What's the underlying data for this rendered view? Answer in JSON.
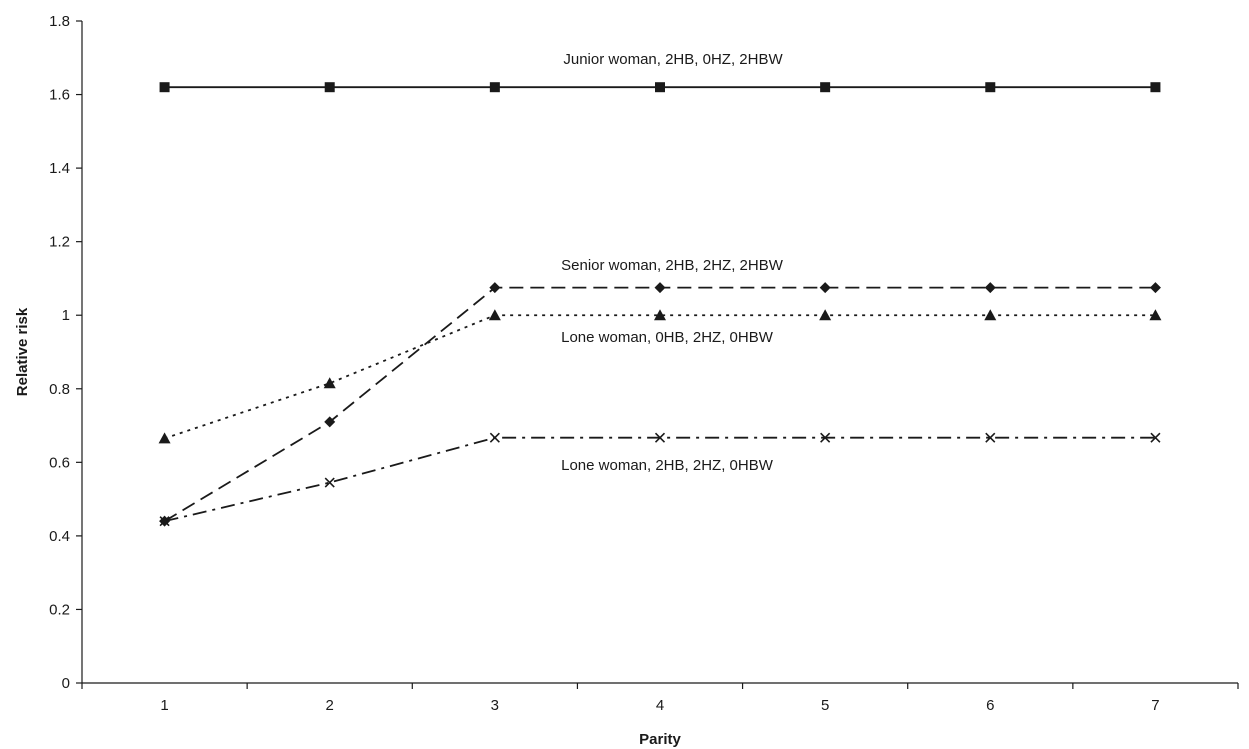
{
  "chart_data": {
    "type": "line",
    "title": "",
    "xlabel": "Parity",
    "ylabel": "Relative risk",
    "x": [
      1,
      2,
      3,
      4,
      5,
      6,
      7
    ],
    "xlim": [
      0.5,
      7.5
    ],
    "ylim": [
      0,
      1.8
    ],
    "yticks": [
      0,
      0.2,
      0.4,
      0.6,
      0.8,
      1,
      1.2,
      1.4,
      1.6,
      1.8
    ],
    "ytick_labels": [
      "0",
      "0.2",
      "0.4",
      "0.6",
      "0.8",
      "1",
      "1.2",
      "1.4",
      "1.6",
      "1.8"
    ],
    "xtick_labels": [
      "1",
      "2",
      "3",
      "4",
      "5",
      "6",
      "7"
    ],
    "grid": false,
    "legend": "none",
    "series": [
      {
        "label": "Junior woman, 2HB, 0HZ, 2HBW",
        "marker": "square",
        "line_style": "solid",
        "color": "#1a1a1a",
        "values": [
          1.62,
          1.62,
          1.62,
          1.62,
          1.62,
          1.62,
          1.62
        ]
      },
      {
        "label": "Senior woman, 2HB, 2HZ, 2HBW",
        "marker": "diamond",
        "line_style": "dashed",
        "color": "#1a1a1a",
        "values": [
          0.44,
          0.71,
          1.075,
          1.075,
          1.075,
          1.075,
          1.075
        ]
      },
      {
        "label": "Lone woman, 0HB, 2HZ, 0HBW",
        "marker": "triangle",
        "line_style": "dotted",
        "color": "#1a1a1a",
        "values": [
          0.665,
          0.815,
          1.0,
          1.0,
          1.0,
          1.0,
          1.0
        ]
      },
      {
        "label": "Lone woman, 2HB, 2HZ, 0HBW",
        "marker": "x",
        "line_style": "dash-dot",
        "color": "#1a1a1a",
        "values": [
          0.44,
          0.545,
          0.667,
          0.667,
          0.667,
          0.667,
          0.667
        ]
      }
    ]
  }
}
